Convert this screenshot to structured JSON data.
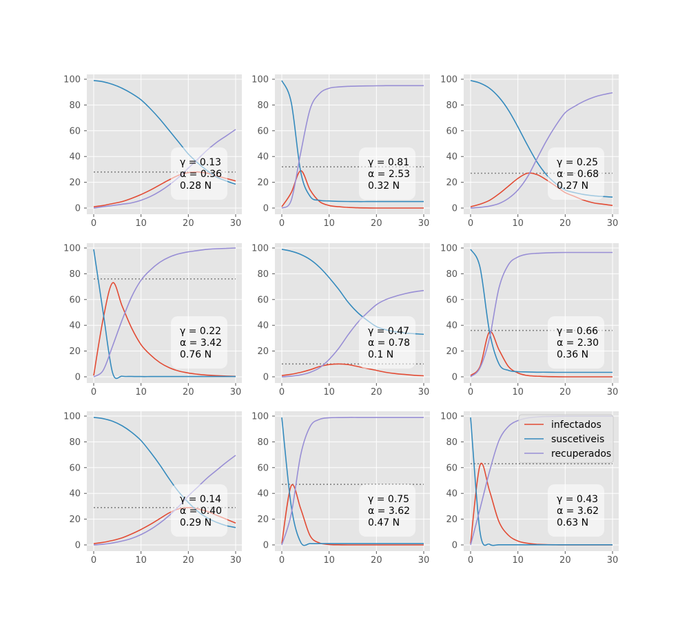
{
  "chart_data": {
    "type": "line",
    "layout": "3x3 grid of subplots",
    "style": "ggplot",
    "xlim": [
      0,
      30
    ],
    "ylim": [
      0,
      100
    ],
    "xticks": [
      0,
      10,
      20,
      30
    ],
    "yticks": [
      0,
      20,
      40,
      60,
      80,
      100
    ],
    "grid": true,
    "series_names": [
      "infectados",
      "suscetiveis",
      "recuperados"
    ],
    "colors": {
      "infectados": "#e24a33",
      "suscetiveis": "#348abd",
      "recuperados": "#988ed5",
      "peak_line": "#808080",
      "axes_bg": "#e5e5e5",
      "grid": "#ffffff"
    },
    "legend": {
      "location": "upper right of last subplot",
      "entries": [
        "infectados",
        "suscetiveis",
        "recuperados"
      ]
    },
    "x": [
      0,
      2,
      4,
      6,
      8,
      10,
      12,
      14,
      16,
      18,
      20,
      22,
      24,
      26,
      28,
      30
    ],
    "subplots": [
      {
        "annotation": [
          "γ = 0.13",
          "α = 0.36",
          "0.28 N"
        ],
        "peak": 28,
        "series": [
          {
            "name": "infectados",
            "values": [
              1,
              2,
              3.5,
              5,
              7.5,
              10.5,
              14,
              18,
              22,
              25.5,
              27.5,
              28,
              27,
              25,
              23,
              21
            ]
          },
          {
            "name": "suscetiveis",
            "values": [
              99,
              98,
              96,
              93,
              89,
              84,
              77,
              69,
              60,
              51,
              42,
              35,
              29,
              24,
              21,
              18.5
            ]
          },
          {
            "name": "recuperados",
            "values": [
              0,
              1,
              2,
              3,
              4,
              6,
              9,
              13,
              18,
              24,
              31,
              38,
              45,
              51,
              56,
              61
            ]
          }
        ]
      },
      {
        "annotation": [
          "γ = 0.81",
          "α = 2.53",
          "0.32 N"
        ],
        "peak": 32,
        "series": [
          {
            "name": "infectados",
            "values": [
              1,
              12,
              29,
              14,
              5,
              2,
              1,
              0.5,
              0.2,
              0.1,
              0,
              0,
              0,
              0,
              0,
              0
            ]
          },
          {
            "name": "suscetiveis",
            "values": [
              99,
              82,
              28,
              9,
              6,
              5.5,
              5.2,
              5.1,
              5,
              5,
              5,
              5,
              5,
              5,
              5,
              5
            ]
          },
          {
            "name": "recuperados",
            "values": [
              0,
              6,
              43,
              77,
              89,
              93,
              94,
              94.5,
              94.7,
              94.8,
              94.9,
              95,
              95,
              95,
              95,
              95
            ]
          }
        ]
      },
      {
        "annotation": [
          "γ = 0.25",
          "α = 0.68",
          "0.27 N"
        ],
        "peak": 27,
        "series": [
          {
            "name": "infectados",
            "values": [
              1,
              3,
              6,
              11,
              17,
              23,
              27,
              26,
              22,
              17,
              12,
              9,
              6,
              4,
              3,
              2
            ]
          },
          {
            "name": "suscetiveis",
            "values": [
              99,
              97,
              93,
              86,
              76,
              63,
              49,
              36,
              26,
              19,
              14,
              12,
              10.5,
              9.5,
              9,
              8.5
            ]
          },
          {
            "name": "recuperados",
            "values": [
              0,
              0.5,
              1.5,
              3.5,
              7.5,
              14,
              24,
              38,
              52,
              64,
              74,
              79,
              83,
              86,
              88,
              89.5
            ]
          }
        ]
      },
      {
        "annotation": [
          "γ = 0.22",
          "α = 3.42",
          "0.76 N"
        ],
        "peak": 76,
        "series": [
          {
            "name": "infectados",
            "values": [
              1,
              45,
              73,
              55,
              38,
              25,
              17,
              11,
              7,
              4.5,
              3,
              2,
              1.3,
              0.9,
              0.6,
              0.4
            ]
          },
          {
            "name": "suscetiveis",
            "values": [
              99,
              50,
              3,
              0.5,
              0.3,
              0.2,
              0.2,
              0.2,
              0.2,
              0.2,
              0.2,
              0.2,
              0.2,
              0.2,
              0.2,
              0.2
            ]
          },
          {
            "name": "recuperados",
            "values": [
              0,
              5,
              24,
              44,
              62,
              75,
              83,
              89,
              93,
              95.5,
              97,
              98,
              99,
              99.4,
              99.7,
              100
            ]
          }
        ]
      },
      {
        "annotation": [
          "γ = 0.47",
          "α = 0.78",
          "0.1 N"
        ],
        "peak": 10,
        "series": [
          {
            "name": "infectados",
            "values": [
              1,
              2,
              3.5,
              5.5,
              8,
              9.5,
              10,
              9.5,
              8,
              6.5,
              5,
              3.5,
              2.5,
              1.8,
              1.2,
              0.8
            ]
          },
          {
            "name": "suscetiveis",
            "values": [
              99,
              97.5,
              95,
              91,
              85,
              77,
              68,
              58,
              50,
              44,
              39,
              36.5,
              35,
              34,
              33.5,
              33
            ]
          },
          {
            "name": "recuperados",
            "values": [
              0,
              0.5,
              1.5,
              3.5,
              7,
              13.5,
              22,
              32.5,
              42,
              49.5,
              56,
              60,
              62.5,
              64.5,
              66,
              67
            ]
          }
        ]
      },
      {
        "annotation": [
          "γ = 0.66",
          "α = 2.30",
          "0.36 N"
        ],
        "peak": 36,
        "series": [
          {
            "name": "infectados",
            "values": [
              1,
              8,
              35,
              21,
              8,
              3,
              1,
              0.5,
              0.2,
              0.1,
              0,
              0,
              0,
              0,
              0,
              0
            ]
          },
          {
            "name": "suscetiveis",
            "values": [
              99,
              85,
              35,
              10,
              5,
              4,
              3.8,
              3.6,
              3.6,
              3.5,
              3.5,
              3.5,
              3.5,
              3.5,
              3.5,
              3.5
            ]
          },
          {
            "name": "recuperados",
            "values": [
              0,
              7,
              30,
              69,
              87,
              93,
              95.2,
              95.9,
              96.2,
              96.4,
              96.5,
              96.5,
              96.5,
              96.5,
              96.5,
              96.5
            ]
          }
        ]
      },
      {
        "annotation": [
          "γ = 0.14",
          "α = 0.40",
          "0.29 N"
        ],
        "peak": 29,
        "series": [
          {
            "name": "infectados",
            "values": [
              1,
              2,
              3.5,
              5.5,
              8.5,
              12,
              16,
              20.5,
              25,
              28,
              29,
              28,
              26,
              23,
              20,
              17
            ]
          },
          {
            "name": "suscetiveis",
            "values": [
              99,
              98,
              96,
              92.5,
              87.5,
              81,
              72,
              62,
              51,
              41,
              33,
              26,
              21,
              17.5,
              15,
              13.5
            ]
          },
          {
            "name": "recuperados",
            "values": [
              0,
              0.5,
              1.5,
              3,
              5,
              8,
              12,
              17,
              23,
              30,
              38,
              45,
              52,
              58,
              64,
              69.5
            ]
          }
        ]
      },
      {
        "annotation": [
          "γ = 0.75",
          "α = 3.62",
          "0.47 N"
        ],
        "peak": 47,
        "series": [
          {
            "name": "infectados",
            "values": [
              1,
              46,
              28,
              7,
              1.5,
              0.3,
              0.1,
              0,
              0,
              0,
              0,
              0,
              0,
              0,
              0,
              0
            ]
          },
          {
            "name": "suscetiveis",
            "values": [
              99,
              30,
              2,
              1,
              1,
              1,
              1,
              1,
              1,
              1,
              1,
              1,
              1,
              1,
              1,
              1
            ]
          },
          {
            "name": "recuperados",
            "values": [
              0,
              24,
              70,
              92,
              97.5,
              98.7,
              98.9,
              99,
              99,
              99,
              99,
              99,
              99,
              99,
              99,
              99
            ]
          }
        ]
      },
      {
        "annotation": [
          "γ = 0.43",
          "α = 3.62",
          "0.63 N"
        ],
        "peak": 63,
        "series": [
          {
            "name": "infectados",
            "values": [
              1,
              62,
              42,
              18,
              7.5,
              3,
              1.3,
              0.5,
              0.2,
              0.1,
              0,
              0,
              0,
              0,
              0,
              0
            ]
          },
          {
            "name": "suscetiveis",
            "values": [
              99,
              10,
              0.5,
              0.1,
              0.1,
              0.1,
              0.1,
              0.1,
              0.1,
              0.1,
              0.1,
              0.1,
              0.1,
              0.1,
              0.1,
              0.1
            ]
          },
          {
            "name": "recuperados",
            "values": [
              0,
              28,
              57,
              81,
              92,
              96.5,
              98.5,
              99.3,
              99.7,
              99.8,
              99.9,
              99.9,
              99.9,
              99.9,
              99.9,
              99.9
            ]
          }
        ]
      }
    ]
  }
}
